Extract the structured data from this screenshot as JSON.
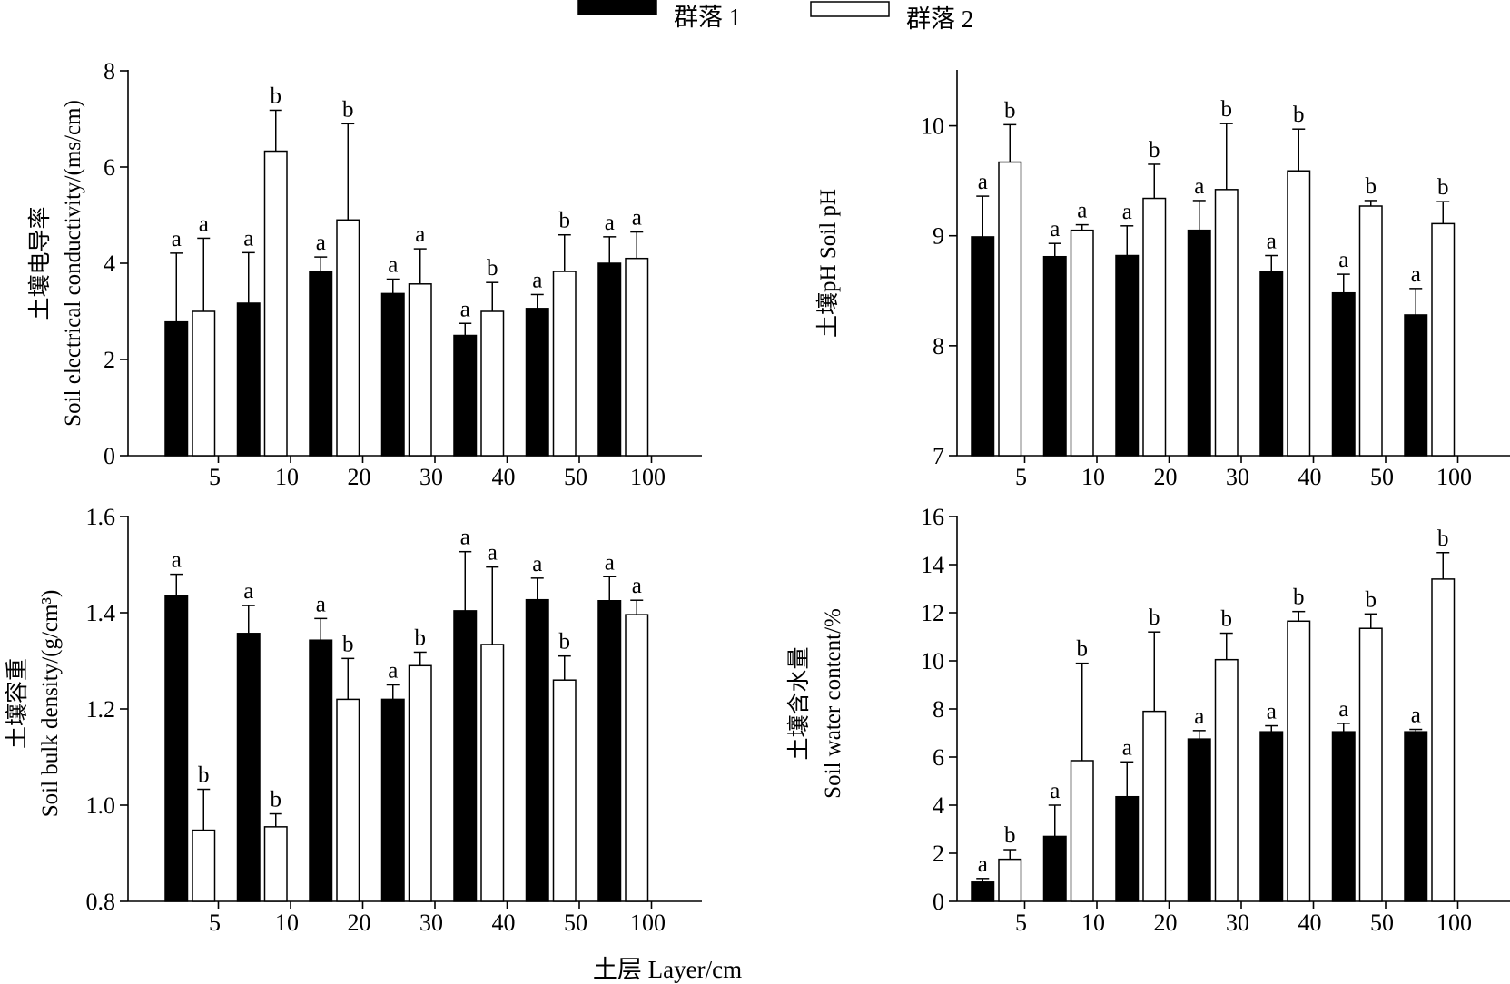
{
  "legend": {
    "items": [
      {
        "label": "群落 1",
        "color": "#000000"
      },
      {
        "label": "群落 2",
        "color": "#ffffff"
      }
    ],
    "placement": "top-center"
  },
  "x_axis_label": "土层 Layer/cm",
  "chart_data": [
    {
      "type": "bar",
      "panel": "top-left",
      "categories": [
        "5",
        "10",
        "20",
        "30",
        "40",
        "50",
        "100"
      ],
      "ylabel_cn": "土壤电导率",
      "ylabel_en": "Soil electrical conductivity/(ms/cm)",
      "ylim": [
        0,
        8
      ],
      "yticks": [
        0,
        2,
        4,
        6,
        8
      ],
      "ytick_labels": [
        "0",
        "2",
        "4",
        "6",
        "8"
      ],
      "series": [
        {
          "name": "群落 1",
          "values": [
            2.78,
            3.17,
            3.83,
            3.37,
            2.5,
            3.06,
            4.0
          ],
          "errors": [
            1.43,
            1.05,
            0.3,
            0.3,
            0.25,
            0.29,
            0.55
          ],
          "letters": [
            "a",
            "a",
            "a",
            "a",
            "a",
            "a",
            "a"
          ]
        },
        {
          "name": "群落 2",
          "values": [
            3.0,
            6.33,
            4.9,
            3.57,
            3.0,
            3.83,
            4.1
          ],
          "errors": [
            1.52,
            0.85,
            2.0,
            0.73,
            0.6,
            0.76,
            0.55
          ],
          "letters": [
            "a",
            "b",
            "b",
            "a",
            "b",
            "b",
            "a"
          ]
        }
      ]
    },
    {
      "type": "bar",
      "panel": "top-right",
      "categories": [
        "5",
        "10",
        "20",
        "30",
        "40",
        "50",
        "100"
      ],
      "ylabel_cn": "土壤pH Soil pH",
      "ylabel_en": "",
      "ylim": [
        7,
        10.5
      ],
      "yticks": [
        7,
        8,
        9,
        10
      ],
      "ytick_labels": [
        "7",
        "8",
        "9",
        "10"
      ],
      "series": [
        {
          "name": "群落 1",
          "values": [
            8.99,
            8.81,
            8.82,
            9.05,
            8.67,
            8.48,
            8.28
          ],
          "errors": [
            0.37,
            0.12,
            0.27,
            0.27,
            0.15,
            0.17,
            0.24
          ],
          "letters": [
            "a",
            "a",
            "a",
            "a",
            "a",
            "a",
            "a"
          ]
        },
        {
          "name": "群落 2",
          "values": [
            9.67,
            9.05,
            9.34,
            9.42,
            9.59,
            9.27,
            9.11
          ],
          "errors": [
            0.34,
            0.05,
            0.31,
            0.6,
            0.38,
            0.05,
            0.2
          ],
          "letters": [
            "b",
            "a",
            "b",
            "b",
            "b",
            "b",
            "b"
          ]
        }
      ]
    },
    {
      "type": "bar",
      "panel": "bottom-left",
      "categories": [
        "5",
        "10",
        "20",
        "30",
        "40",
        "50",
        "100"
      ],
      "ylabel_cn": "土壤容重",
      "ylabel_en": "Soil bulk density/(g/cm³)",
      "ylim": [
        0.8,
        1.6
      ],
      "yticks": [
        0.8,
        1.0,
        1.2,
        1.4,
        1.6
      ],
      "ytick_labels": [
        "0.8",
        "1.0",
        "1.2",
        "1.4",
        "1.6"
      ],
      "series": [
        {
          "name": "群落 1",
          "values": [
            1.435,
            1.357,
            1.343,
            1.22,
            1.404,
            1.427,
            1.425
          ],
          "errors": [
            0.045,
            0.058,
            0.045,
            0.03,
            0.123,
            0.045,
            0.05
          ],
          "letters": [
            "a",
            "a",
            "a",
            "a",
            "a",
            "a",
            "a"
          ]
        },
        {
          "name": "群落 2",
          "values": [
            0.948,
            0.955,
            1.22,
            1.29,
            1.334,
            1.26,
            1.396
          ],
          "errors": [
            0.085,
            0.027,
            0.085,
            0.028,
            0.161,
            0.05,
            0.03
          ],
          "letters": [
            "b",
            "b",
            "b",
            "b",
            "a",
            "b",
            "a"
          ]
        }
      ]
    },
    {
      "type": "bar",
      "panel": "bottom-right",
      "categories": [
        "5",
        "10",
        "20",
        "30",
        "40",
        "50",
        "100"
      ],
      "ylabel_cn": "土壤含水量",
      "ylabel_en": "Soil water content/%",
      "ylim": [
        0,
        16
      ],
      "yticks": [
        0,
        2,
        4,
        6,
        8,
        10,
        12,
        14,
        16
      ],
      "ytick_labels": [
        "0",
        "2",
        "4",
        "6",
        "8",
        "10",
        "12",
        "14",
        "16"
      ],
      "series": [
        {
          "name": "群落 1",
          "values": [
            0.8,
            2.7,
            4.35,
            6.75,
            7.05,
            7.05,
            7.05
          ],
          "errors": [
            0.15,
            1.3,
            1.45,
            0.35,
            0.25,
            0.35,
            0.1
          ],
          "letters": [
            "a",
            "a",
            "a",
            "a",
            "a",
            "a",
            "a"
          ]
        },
        {
          "name": "群落 2",
          "values": [
            1.75,
            5.85,
            7.9,
            10.05,
            11.65,
            11.35,
            13.4
          ],
          "errors": [
            0.4,
            4.05,
            3.3,
            1.1,
            0.4,
            0.6,
            1.1
          ],
          "letters": [
            "b",
            "b",
            "b",
            "b",
            "b",
            "b",
            "b"
          ]
        }
      ]
    }
  ]
}
